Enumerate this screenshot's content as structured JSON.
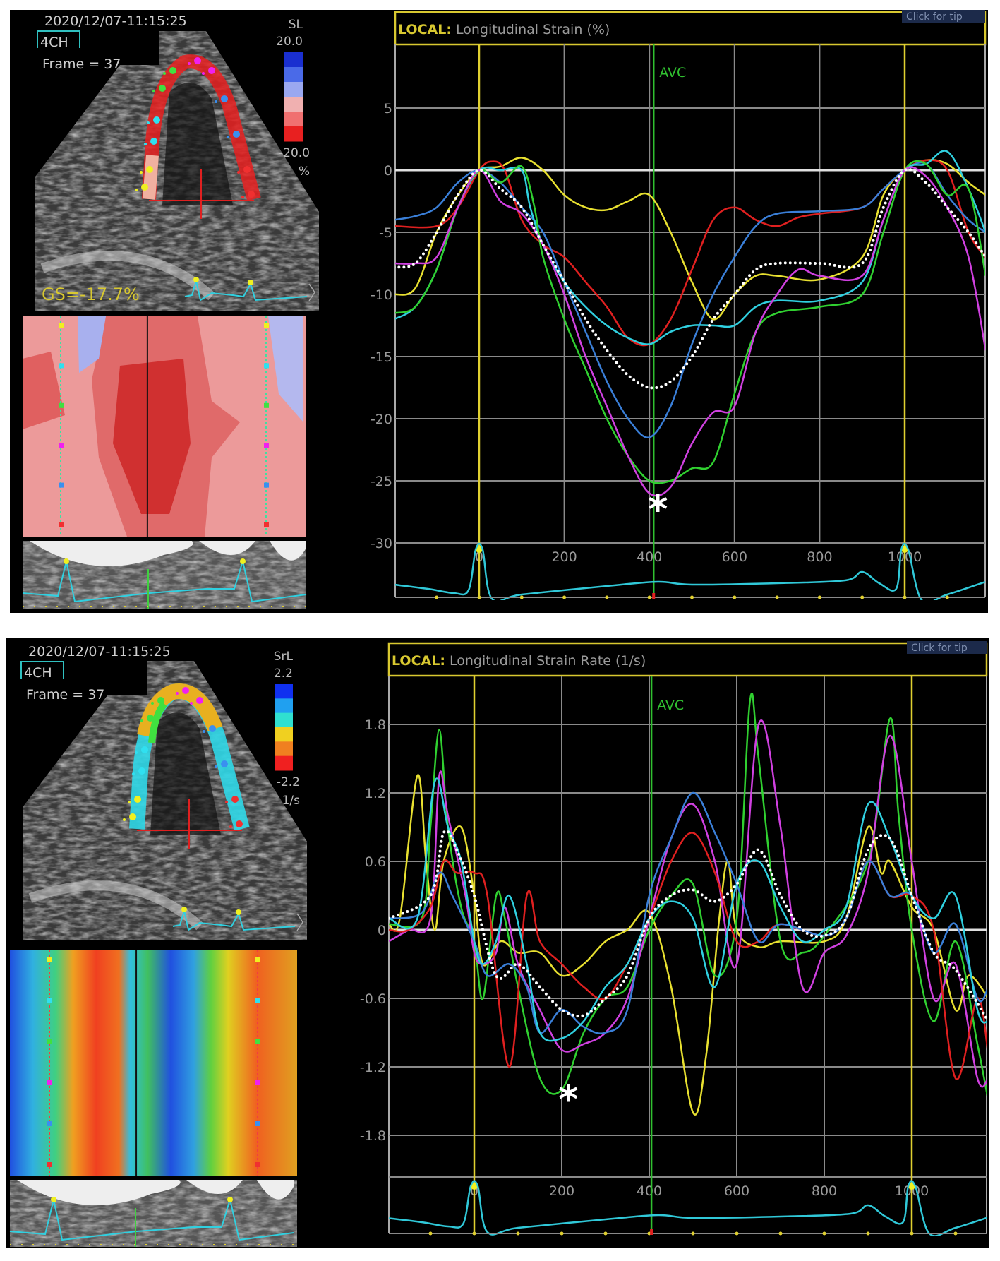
{
  "panels": [
    {
      "timestamp": "2020/12/07-11:15:25",
      "view": "4CH",
      "frame": "Frame = 37",
      "colorbar": {
        "label": "SL",
        "max": "20.0",
        "min": "-20.0",
        "unit": "%",
        "colors": [
          "#1a2fd0",
          "#4a6ae8",
          "#9aa8f0",
          "#f0b0b0",
          "#f07070",
          "#e82020"
        ]
      },
      "global_strain": "GS=-17.7%",
      "tip_button": "Click for tip"
    },
    {
      "timestamp": "2020/12/07-11:15:25",
      "view": "4CH",
      "frame": "Frame = 37",
      "colorbar": {
        "label": "SrL",
        "max": "2.2",
        "min": "-2.2",
        "unit": "1/s",
        "colors": [
          "#1030f0",
          "#20a0f0",
          "#30e0d0",
          "#f0d020",
          "#f08020",
          "#f02020"
        ]
      },
      "tip_button": "Click for tip"
    }
  ],
  "chart_data": [
    {
      "type": "line",
      "title_prefix": "LOCAL:",
      "title": "Longitudinal Strain (%)",
      "xlim": [
        -200,
        1190
      ],
      "ylim": [
        -30,
        8
      ],
      "x_ticks": [
        0,
        200,
        400,
        600,
        800,
        1000
      ],
      "x_tick_labels": [
        "0",
        "200",
        "400",
        "600",
        "800",
        "1000"
      ],
      "y_ticks": [
        5,
        0,
        -5,
        -10,
        -15,
        -20,
        -25,
        -30
      ],
      "y_tick_labels": [
        "5",
        "0",
        "-5",
        "-10",
        "-15",
        "-20",
        "-25",
        "-30"
      ],
      "grid": true,
      "event_markers": [
        {
          "x": 0,
          "color": "#e0d030"
        },
        {
          "x": 1000,
          "color": "#e0d030"
        },
        {
          "x": 410,
          "color": "#30c030",
          "label": "AVC"
        }
      ],
      "annotation": {
        "text": "*",
        "x": 420,
        "y": -27
      },
      "series": [
        {
          "color": "#e8e030",
          "style": "solid",
          "x": [
            -200,
            -150,
            -100,
            -50,
            0,
            50,
            100,
            150,
            200,
            250,
            300,
            350,
            400,
            450,
            500,
            550,
            600,
            650,
            700,
            800,
            900,
            950,
            1000,
            1050,
            1100,
            1150,
            1190
          ],
          "y": [
            -10,
            -9.5,
            -5,
            -2,
            0,
            0.3,
            1,
            0,
            -2,
            -3,
            -3.2,
            -2.5,
            -2,
            -5,
            -9,
            -12,
            -10,
            -8.5,
            -8.5,
            -8.8,
            -7,
            -2,
            0,
            0.8,
            0.5,
            -1,
            -2
          ]
        },
        {
          "color": "#e02020",
          "style": "solid",
          "x": [
            -200,
            -100,
            -50,
            0,
            30,
            60,
            100,
            150,
            200,
            250,
            300,
            350,
            400,
            450,
            500,
            550,
            600,
            650,
            700,
            750,
            800,
            900,
            950,
            1000,
            1050,
            1100,
            1150,
            1190
          ],
          "y": [
            -4.5,
            -4.5,
            -3,
            0,
            0.7,
            0,
            -4,
            -6,
            -7,
            -9,
            -11,
            -13.5,
            -14,
            -12,
            -8,
            -4,
            -3,
            -4,
            -4.5,
            -3.8,
            -3.5,
            -3,
            -1.5,
            0,
            0.8,
            0,
            -5,
            -7
          ]
        },
        {
          "color": "#3a7fd8",
          "style": "solid",
          "x": [
            -200,
            -150,
            -100,
            -50,
            0,
            50,
            100,
            150,
            200,
            250,
            300,
            350,
            400,
            450,
            500,
            550,
            600,
            650,
            700,
            800,
            900,
            950,
            1000,
            1050,
            1100,
            1150,
            1190
          ],
          "y": [
            -4,
            -3.7,
            -3,
            -1,
            0,
            -1,
            -3,
            -5,
            -9,
            -13,
            -17,
            -20,
            -21.5,
            -19,
            -14,
            -10,
            -7,
            -4.5,
            -3.5,
            -3.3,
            -3,
            -1.5,
            0,
            0.5,
            -2,
            -4,
            -5
          ]
        },
        {
          "color": "#30d0e0",
          "style": "solid",
          "x": [
            -200,
            -150,
            -100,
            -50,
            0,
            50,
            100,
            120,
            150,
            200,
            250,
            300,
            350,
            400,
            450,
            500,
            550,
            600,
            650,
            700,
            800,
            900,
            950,
            1000,
            1050,
            1100,
            1150,
            1190
          ],
          "y": [
            -12,
            -11,
            -8,
            -3,
            0,
            0,
            0,
            -3,
            -6,
            -9,
            -11,
            -12.5,
            -13.5,
            -14,
            -13,
            -12.5,
            -12.5,
            -12.5,
            -11,
            -10.5,
            -10.5,
            -9,
            -4,
            0,
            0.5,
            1.5,
            -1.5,
            -5
          ]
        },
        {
          "color": "#30d030",
          "style": "solid",
          "x": [
            -200,
            -150,
            -100,
            -50,
            0,
            50,
            100,
            130,
            150,
            200,
            250,
            300,
            350,
            400,
            450,
            500,
            550,
            600,
            650,
            700,
            800,
            900,
            950,
            1000,
            1050,
            1100,
            1150,
            1190
          ],
          "y": [
            -11.5,
            -11,
            -8,
            -3,
            0,
            -1,
            0.3,
            -3,
            -7,
            -12,
            -16,
            -20,
            -23,
            -25,
            -25,
            -24,
            -23.5,
            -18,
            -13,
            -11.5,
            -11,
            -10,
            -5,
            0,
            0.5,
            -2,
            -1.5,
            -8.5
          ]
        },
        {
          "color": "#d040e0",
          "style": "solid",
          "x": [
            -200,
            -150,
            -100,
            -50,
            0,
            50,
            100,
            150,
            200,
            250,
            300,
            350,
            400,
            450,
            500,
            550,
            600,
            650,
            700,
            750,
            800,
            900,
            950,
            1000,
            1050,
            1100,
            1150,
            1190
          ],
          "y": [
            -7.5,
            -7.5,
            -7,
            -3,
            0,
            -2.5,
            -3.5,
            -6,
            -10,
            -15,
            -19,
            -23,
            -26,
            -25.5,
            -22,
            -19.5,
            -19,
            -13,
            -10,
            -8,
            -8.5,
            -8.5,
            -4,
            0,
            -0.5,
            -3,
            -7,
            -14.5
          ]
        },
        {
          "color": "#ffffff",
          "style": "dotted",
          "x": [
            -200,
            -150,
            -100,
            -50,
            0,
            50,
            100,
            150,
            200,
            250,
            300,
            350,
            400,
            450,
            500,
            550,
            600,
            650,
            700,
            800,
            900,
            950,
            1000,
            1050,
            1100,
            1150,
            1190
          ],
          "y": [
            -7.8,
            -7.5,
            -5,
            -2,
            0,
            -1.5,
            -3,
            -6,
            -9,
            -12,
            -14.5,
            -16.5,
            -17.5,
            -17,
            -15,
            -12,
            -10,
            -8,
            -7.5,
            -7.5,
            -7.5,
            -3,
            0,
            -1,
            -3,
            -5,
            -7
          ]
        }
      ]
    },
    {
      "type": "line",
      "title_prefix": "LOCAL:",
      "title": "Longitudinal Strain Rate (1/s)",
      "xlim": [
        -195,
        1175
      ],
      "ylim": [
        -2.2,
        2.2
      ],
      "x_ticks": [
        0,
        200,
        400,
        600,
        800,
        1000
      ],
      "x_tick_labels": [
        "0",
        "200",
        "400",
        "600",
        "800",
        "1000"
      ],
      "y_ticks": [
        1.8,
        1.2,
        0.6,
        0,
        -0.6,
        -1.2,
        -1.8
      ],
      "y_tick_labels": [
        "1.8",
        "1.2",
        "0.6",
        "0",
        "-0.6",
        "-1.2",
        "-1.8"
      ],
      "grid": true,
      "event_markers": [
        {
          "x": 0,
          "color": "#e0d030"
        },
        {
          "x": 1000,
          "color": "#e0d030"
        },
        {
          "x": 405,
          "color": "#30c030",
          "label": "AVC"
        }
      ],
      "annotation": {
        "text": "*",
        "x": 215,
        "y": -1.45
      },
      "series": [
        {
          "color": "#e8e030",
          "style": "solid",
          "x": [
            -195,
            -170,
            -130,
            -110,
            -90,
            -70,
            -30,
            0,
            20,
            60,
            100,
            150,
            200,
            250,
            300,
            350,
            400,
            450,
            500,
            530,
            560,
            580,
            600,
            650,
            700,
            800,
            850,
            900,
            930,
            950,
            1000,
            1050,
            1100,
            1130,
            1175
          ],
          "y": [
            0.05,
            0.1,
            1.35,
            0.6,
            0,
            0.6,
            0.9,
            0.3,
            -0.3,
            -0.1,
            -0.2,
            -0.2,
            -0.4,
            -0.3,
            -0.1,
            0,
            0.15,
            -0.5,
            -1.6,
            -1.1,
            0.1,
            0.6,
            0,
            -0.15,
            -0.1,
            -0.1,
            0.1,
            0.9,
            0.5,
            0.6,
            0.2,
            0,
            -0.7,
            -0.4,
            -0.6
          ]
        },
        {
          "color": "#30d030",
          "style": "solid",
          "x": [
            -195,
            -120,
            -100,
            -80,
            -60,
            -30,
            0,
            20,
            50,
            70,
            100,
            150,
            200,
            250,
            300,
            350,
            400,
            450,
            500,
            550,
            600,
            630,
            650,
            700,
            750,
            800,
            900,
            950,
            970,
            1000,
            1050,
            1100,
            1150,
            1175
          ],
          "y": [
            0.05,
            0.1,
            0.9,
            1.75,
            0.9,
            0.2,
            -0.1,
            -0.6,
            0.3,
            0.1,
            -0.5,
            -1.3,
            -1.4,
            -0.9,
            -0.6,
            -0.5,
            0,
            0.3,
            0.4,
            -0.4,
            0.1,
            2.0,
            1.5,
            -0.1,
            -0.2,
            -0.05,
            0.6,
            1.85,
            1.0,
            0,
            -0.8,
            -0.1,
            -1,
            -1.5
          ]
        },
        {
          "color": "#d040e0",
          "style": "solid",
          "x": [
            -195,
            -150,
            -100,
            -80,
            -60,
            -20,
            0,
            20,
            50,
            70,
            100,
            150,
            200,
            250,
            300,
            350,
            400,
            450,
            500,
            550,
            600,
            650,
            700,
            750,
            800,
            850,
            900,
            950,
            1000,
            1050,
            1100,
            1150,
            1175
          ],
          "y": [
            -0.1,
            0,
            0.1,
            1.35,
            1.0,
            0.3,
            -0.2,
            -0.3,
            -0.2,
            0.2,
            -0.3,
            -0.7,
            -1.05,
            -1.0,
            -0.9,
            -0.6,
            0.1,
            0.8,
            1.1,
            0.6,
            -0.3,
            1.8,
            0.9,
            -0.5,
            -0.2,
            -0.05,
            0.5,
            1.7,
            0.6,
            -0.6,
            -0.3,
            -1.3,
            -1.3
          ]
        },
        {
          "color": "#e02020",
          "style": "solid",
          "x": [
            -195,
            -150,
            -100,
            -70,
            -40,
            0,
            30,
            80,
            120,
            150,
            200,
            250,
            300,
            350,
            400,
            450,
            500,
            550,
            600,
            650,
            700,
            800,
            850,
            900,
            950,
            1000,
            1050,
            1100,
            1150,
            1175
          ],
          "y": [
            0,
            0,
            0.2,
            0.6,
            0.5,
            0.5,
            0.3,
            -1.2,
            0.3,
            -0.1,
            -0.3,
            -0.5,
            -0.6,
            -0.3,
            0.1,
            0.6,
            0.85,
            0.5,
            -0.1,
            -0.1,
            0.05,
            -0.05,
            0.1,
            0.6,
            0.3,
            0.3,
            0,
            -1.3,
            -0.6,
            -1.1
          ]
        },
        {
          "color": "#3a7fd8",
          "style": "solid",
          "x": [
            -195,
            -120,
            -80,
            -50,
            0,
            30,
            80,
            120,
            150,
            200,
            250,
            300,
            350,
            400,
            450,
            500,
            550,
            600,
            650,
            700,
            800,
            850,
            900,
            950,
            1000,
            1050,
            1100,
            1150,
            1175
          ],
          "y": [
            0.1,
            0.15,
            0.5,
            0.3,
            -0.1,
            -0.4,
            -0.3,
            -0.5,
            -0.9,
            -0.7,
            -0.85,
            -0.9,
            -0.7,
            0.3,
            0.8,
            1.2,
            0.85,
            0.4,
            -0.1,
            0.05,
            -0.05,
            0.1,
            0.6,
            0.3,
            0.3,
            -0.2,
            0.05,
            -0.6,
            -0.5
          ]
        },
        {
          "color": "#30d0e0",
          "style": "solid",
          "x": [
            -195,
            -130,
            -90,
            -60,
            -30,
            0,
            20,
            50,
            80,
            120,
            150,
            200,
            250,
            300,
            350,
            400,
            450,
            500,
            550,
            600,
            650,
            700,
            750,
            800,
            850,
            900,
            950,
            1000,
            1050,
            1100,
            1150,
            1175
          ],
          "y": [
            0.1,
            0.1,
            1.3,
            0.9,
            0.6,
            -0.1,
            -0.3,
            -0.1,
            0.3,
            -0.3,
            -0.9,
            -0.95,
            -0.8,
            -0.5,
            -0.3,
            0.1,
            0.25,
            0.1,
            -0.5,
            0.4,
            0.6,
            0.2,
            -0.1,
            0,
            0.2,
            1.1,
            0.8,
            0.3,
            0.1,
            0.3,
            -0.7,
            -0.8
          ]
        },
        {
          "color": "#ffffff",
          "style": "dotted",
          "x": [
            -195,
            -100,
            -70,
            -40,
            0,
            50,
            100,
            150,
            200,
            250,
            300,
            350,
            400,
            450,
            500,
            550,
            600,
            650,
            700,
            750,
            800,
            850,
            900,
            950,
            1000,
            1050,
            1100,
            1175
          ],
          "y": [
            0.1,
            0.3,
            0.85,
            0.7,
            0.3,
            -0.4,
            -0.3,
            -0.5,
            -0.7,
            -0.75,
            -0.6,
            -0.4,
            0.1,
            0.3,
            0.35,
            0.25,
            0.4,
            0.7,
            0.3,
            0,
            -0.05,
            0.1,
            0.7,
            0.8,
            0.3,
            -0.2,
            -0.35,
            -0.8
          ]
        }
      ]
    }
  ]
}
